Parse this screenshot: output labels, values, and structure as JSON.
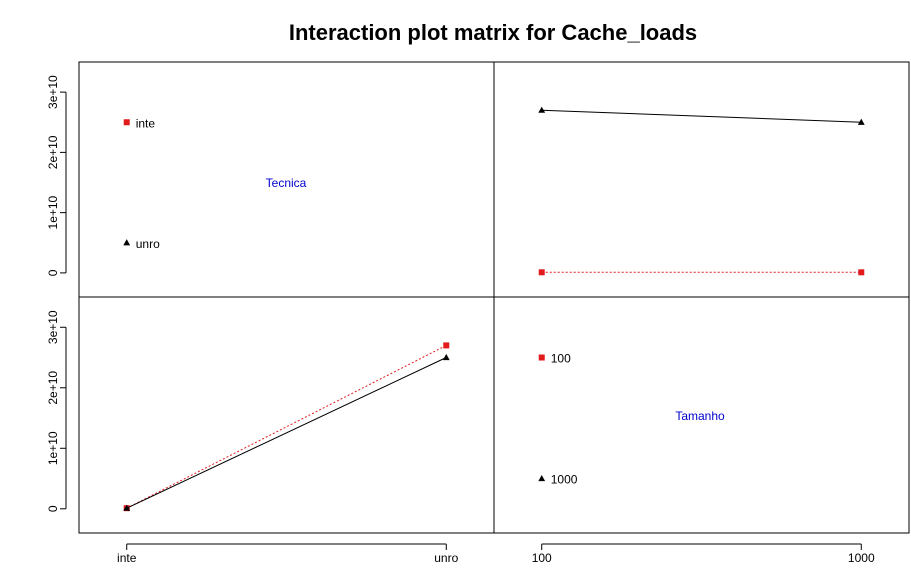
{
  "chart_data": {
    "type": "line",
    "title": "Interaction plot matrix for Cache_loads",
    "factors": [
      {
        "name": "Tecnica",
        "levels": [
          "inte",
          "unro"
        ]
      },
      {
        "name": "Tamanho",
        "levels": [
          "100",
          "1000"
        ]
      }
    ],
    "y_ticks": [
      "0",
      "1e+10",
      "2e+10",
      "3e+10"
    ],
    "y_tick_values": [
      0,
      10000000000,
      20000000000,
      30000000000
    ],
    "ylim": [
      -4000000000,
      35000000000
    ],
    "x_ticks_left": [
      "inte",
      "unro"
    ],
    "x_ticks_right": [
      "100",
      "1000"
    ],
    "legend_top_left": [
      {
        "label": "inte",
        "marker": "square",
        "color": "#e31a1c",
        "y": 25000000000
      },
      {
        "label": "unro",
        "marker": "triangle",
        "color": "#000000",
        "y": 5000000000
      }
    ],
    "legend_bottom_right": [
      {
        "label": "100",
        "marker": "square",
        "color": "#e31a1c",
        "y": 25000000000
      },
      {
        "label": "1000",
        "marker": "triangle",
        "color": "#000000",
        "y": 5000000000
      }
    ],
    "top_right_series": [
      {
        "trace": "inte",
        "marker": "square",
        "color": "#e31a1c",
        "line": "dotted",
        "x": [
          "100",
          "1000"
        ],
        "values": [
          100000000,
          100000000
        ]
      },
      {
        "trace": "unro",
        "marker": "triangle",
        "color": "#000000",
        "line": "solid",
        "x": [
          "100",
          "1000"
        ],
        "values": [
          27000000000,
          25000000000
        ]
      }
    ],
    "bottom_left_series": [
      {
        "trace": "100",
        "marker": "square",
        "color": "#e31a1c",
        "line": "dotted",
        "x": [
          "inte",
          "unro"
        ],
        "values": [
          100000000,
          27000000000
        ]
      },
      {
        "trace": "1000",
        "marker": "triangle",
        "color": "#000000",
        "line": "solid",
        "x": [
          "inte",
          "unro"
        ],
        "values": [
          100000000,
          25000000000
        ]
      }
    ],
    "diag_label_color": "#0000cd"
  }
}
